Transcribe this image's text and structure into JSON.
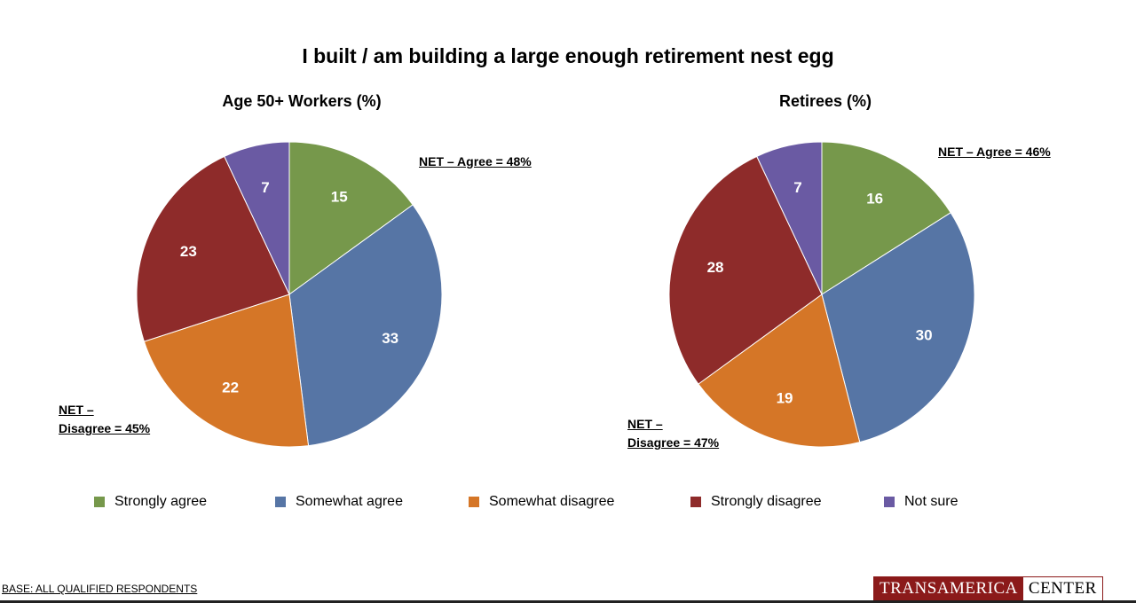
{
  "title": "I built / am building a large enough retirement nest egg",
  "net_left": {
    "agree": "NET – Agree = 48%",
    "disagree_line1": "NET –",
    "disagree_line2": "Disagree = 45%"
  },
  "net_right": {
    "agree": "NET – Agree = 46%",
    "disagree_line1": "NET –",
    "disagree_line2": "Disagree = 47%"
  },
  "legend": [
    {
      "label": "Strongly agree",
      "color": "#76984b"
    },
    {
      "label": "Somewhat agree",
      "color": "#5675a5"
    },
    {
      "label": "Somewhat disagree",
      "color": "#d57627"
    },
    {
      "label": "Strongly disagree",
      "color": "#8e2b2a"
    },
    {
      "label": "Not sure",
      "color": "#6a5aa3"
    }
  ],
  "base_note": "BASE: ALL QUALIFIED RESPONDENTS",
  "logo": {
    "part1": "TRANSAMERICA",
    "part2": "CENTER"
  },
  "chart_data": [
    {
      "type": "pie",
      "title": "Age 50+ Workers (%)",
      "categories": [
        "Strongly agree",
        "Somewhat agree",
        "Somewhat disagree",
        "Strongly disagree",
        "Not sure"
      ],
      "values": [
        15,
        33,
        22,
        23,
        7
      ],
      "colors": [
        "#76984b",
        "#5675a5",
        "#d57627",
        "#8e2b2a",
        "#6a5aa3"
      ]
    },
    {
      "type": "pie",
      "title": "Retirees (%)",
      "categories": [
        "Strongly agree",
        "Somewhat agree",
        "Somewhat disagree",
        "Strongly disagree",
        "Not sure"
      ],
      "values": [
        16,
        30,
        19,
        28,
        7
      ],
      "colors": [
        "#76984b",
        "#5675a5",
        "#d57627",
        "#8e2b2a",
        "#6a5aa3"
      ]
    }
  ]
}
